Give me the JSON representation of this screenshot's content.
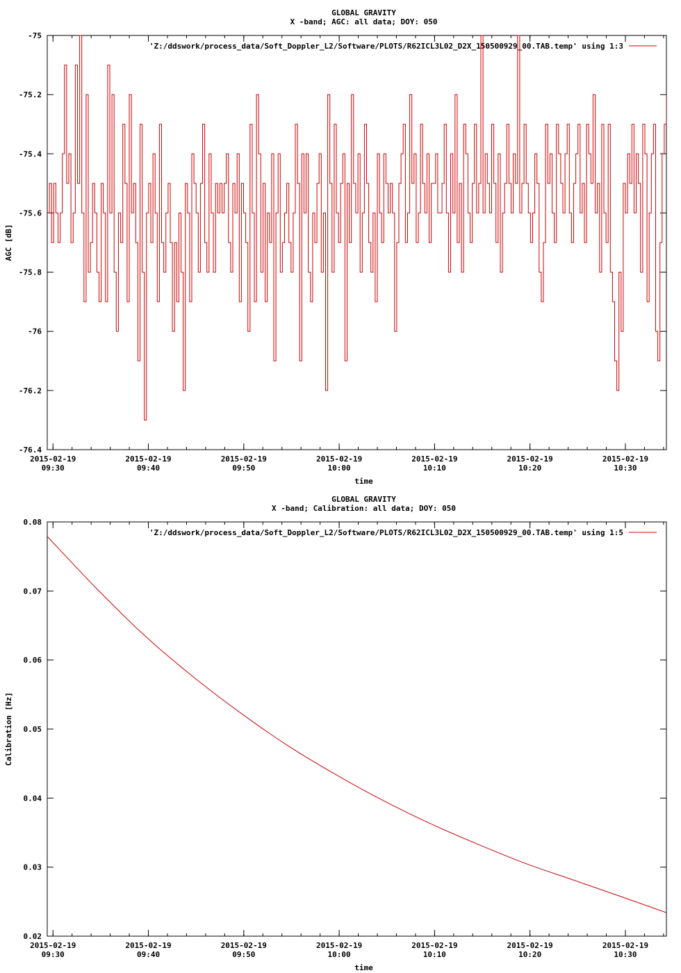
{
  "colors": {
    "series": "#cc0000",
    "axis": "#000000",
    "background": "#ffffff"
  },
  "chart_data": [
    {
      "type": "line",
      "title": "GLOBAL GRAVITY",
      "subtitle": "X -band; AGC: all data; DOY: 050",
      "xlabel": "time",
      "ylabel": "AGC [dB]",
      "legend": "'Z:/ddswork/process_data/Soft_Doppler_L2/Software/PLOTS/R62ICL3L02_D2X_150500929_00.TAB.temp' using 1:3",
      "legend_placement": "top-right",
      "grid": false,
      "x_unit": "minutes after 2015-02-19 09:30",
      "xlim": [
        -0.6,
        64.3
      ],
      "ylim": [
        -76.4,
        -75.0
      ],
      "xticks": [
        {
          "value": 0,
          "date": "2015-02-19",
          "time": "09:30"
        },
        {
          "value": 10,
          "date": "2015-02-19",
          "time": "09:40"
        },
        {
          "value": 20,
          "date": "2015-02-19",
          "time": "09:50"
        },
        {
          "value": 30,
          "date": "2015-02-19",
          "time": "10:00"
        },
        {
          "value": 40,
          "date": "2015-02-19",
          "time": "10:10"
        },
        {
          "value": 50,
          "date": "2015-02-19",
          "time": "10:20"
        },
        {
          "value": 60,
          "date": "2015-02-19",
          "time": "10:30"
        }
      ],
      "x_minor_tick_step": 2,
      "yticks": [
        {
          "value": -75.0,
          "label": "-75"
        },
        {
          "value": -75.2,
          "label": "-75.2"
        },
        {
          "value": -75.4,
          "label": "-75.4"
        },
        {
          "value": -75.6,
          "label": "-75.6"
        },
        {
          "value": -75.8,
          "label": "-75.8"
        },
        {
          "value": -76.0,
          "label": "-76"
        },
        {
          "value": -76.2,
          "label": "-76.2"
        },
        {
          "value": -76.4,
          "label": "-76.4"
        }
      ],
      "series": [
        {
          "x": [
            -0.6,
            64.3
          ],
          "samples": [
            -75.6,
            -75.5,
            -75.7,
            -75.5,
            -75.6,
            -75.7,
            -75.6,
            -75.4,
            -75.1,
            -75.5,
            -75.4,
            -75.7,
            -75.6,
            -75.1,
            -75.5,
            -75.0,
            -75.6,
            -75.9,
            -75.2,
            -75.8,
            -75.7,
            -75.5,
            -75.6,
            -75.8,
            -75.9,
            -75.5,
            -75.6,
            -75.9,
            -75.1,
            -75.6,
            -75.2,
            -75.8,
            -76.0,
            -75.6,
            -75.7,
            -75.3,
            -75.5,
            -75.9,
            -75.2,
            -75.6,
            -75.5,
            -75.7,
            -76.1,
            -75.3,
            -75.8,
            -76.3,
            -75.6,
            -75.5,
            -75.7,
            -75.4,
            -75.6,
            -75.9,
            -75.3,
            -75.7,
            -75.8,
            -75.6,
            -75.5,
            -75.7,
            -76.0,
            -75.7,
            -75.9,
            -75.6,
            -75.8,
            -76.2,
            -75.5,
            -75.6,
            -75.9,
            -75.4,
            -75.5,
            -75.6,
            -75.8,
            -75.5,
            -75.3,
            -75.7,
            -75.8,
            -75.4,
            -75.6,
            -75.8,
            -75.5,
            -75.6,
            -75.5,
            -75.6,
            -75.5,
            -75.4,
            -75.7,
            -75.8,
            -75.5,
            -75.6,
            -75.4,
            -75.9,
            -75.5,
            -75.6,
            -75.7,
            -76.0,
            -75.3,
            -75.6,
            -75.9,
            -75.2,
            -75.4,
            -75.8,
            -75.5,
            -75.9,
            -75.6,
            -75.7,
            -75.4,
            -76.1,
            -75.6,
            -75.4,
            -75.8,
            -75.7,
            -75.6,
            -75.5,
            -75.7,
            -75.8,
            -75.6,
            -75.3,
            -75.5,
            -76.1,
            -75.4,
            -75.6,
            -75.4,
            -75.8,
            -75.9,
            -75.6,
            -75.7,
            -75.5,
            -75.4,
            -75.8,
            -75.6,
            -76.2,
            -75.2,
            -75.5,
            -75.8,
            -75.3,
            -75.6,
            -75.7,
            -75.5,
            -75.4,
            -76.1,
            -75.5,
            -75.7,
            -75.2,
            -75.5,
            -75.6,
            -75.4,
            -75.8,
            -75.6,
            -75.3,
            -75.5,
            -75.7,
            -75.8,
            -75.6,
            -75.9,
            -75.4,
            -75.6,
            -75.7,
            -75.4,
            -75.5,
            -75.6,
            -75.5,
            -75.6,
            -76.0,
            -75.7,
            -75.5,
            -75.4,
            -75.3,
            -75.7,
            -75.6,
            -75.2,
            -75.5,
            -75.4,
            -75.7,
            -75.6,
            -75.3,
            -75.5,
            -75.6,
            -75.4,
            -75.7,
            -75.5,
            -75.5,
            -75.4,
            -75.6,
            -75.6,
            -75.5,
            -75.3,
            -75.6,
            -75.8,
            -75.4,
            -75.6,
            -75.2,
            -75.7,
            -75.5,
            -75.8,
            -75.3,
            -75.4,
            -75.6,
            -75.7,
            -75.5,
            -75.3,
            -75.6,
            -75.5,
            -75.0,
            -75.6,
            -75.4,
            -75.5,
            -75.6,
            -75.3,
            -75.5,
            -75.7,
            -75.4,
            -75.8,
            -75.6,
            -75.5,
            -75.3,
            -75.5,
            -75.6,
            -75.4,
            -75.5,
            -75.0,
            -75.6,
            -75.5,
            -75.3,
            -75.5,
            -75.6,
            -75.7,
            -75.6,
            -75.4,
            -75.5,
            -75.8,
            -75.9,
            -75.7,
            -75.3,
            -75.5,
            -75.4,
            -75.6,
            -75.7,
            -75.3,
            -75.4,
            -75.5,
            -75.6,
            -75.4,
            -75.3,
            -75.6,
            -75.7,
            -75.5,
            -75.4,
            -75.3,
            -75.6,
            -75.5,
            -75.7,
            -75.3,
            -75.4,
            -75.5,
            -75.2,
            -75.6,
            -75.5,
            -75.8,
            -75.3,
            -75.6,
            -75.7,
            -75.3,
            -75.8,
            -75.9,
            -76.1,
            -76.2,
            -75.8,
            -76.0,
            -75.5,
            -75.6,
            -75.4,
            -75.5,
            -75.3,
            -75.6,
            -75.4,
            -75.5,
            -75.8,
            -75.3,
            -75.4,
            -75.9,
            -75.6,
            -75.4,
            -75.3,
            -76.0,
            -76.1,
            -75.7,
            -75.4,
            -75.3,
            -75.2
          ]
        }
      ]
    },
    {
      "type": "line",
      "title": "GLOBAL GRAVITY",
      "subtitle": "X -band; Calibration: all data; DOY: 050",
      "xlabel": "time",
      "ylabel": "Calibration [Hz]",
      "legend": "'Z:/ddswork/process_data/Soft_Doppler_L2/Software/PLOTS/R62ICL3L02_D2X_150500929_00.TAB.temp' using 1:5",
      "legend_placement": "top-right",
      "grid": false,
      "x_unit": "minutes after 2015-02-19 09:30",
      "xlim": [
        -0.6,
        64.3
      ],
      "ylim": [
        0.02,
        0.08
      ],
      "xticks": [
        {
          "value": 0,
          "date": "2015-02-19",
          "time": "09:30"
        },
        {
          "value": 10,
          "date": "2015-02-19",
          "time": "09:40"
        },
        {
          "value": 20,
          "date": "2015-02-19",
          "time": "09:50"
        },
        {
          "value": 30,
          "date": "2015-02-19",
          "time": "10:00"
        },
        {
          "value": 40,
          "date": "2015-02-19",
          "time": "10:10"
        },
        {
          "value": 50,
          "date": "2015-02-19",
          "time": "10:20"
        },
        {
          "value": 60,
          "date": "2015-02-19",
          "time": "10:30"
        }
      ],
      "x_minor_tick_step": 2,
      "yticks": [
        {
          "value": 0.02,
          "label": "0.02"
        },
        {
          "value": 0.03,
          "label": "0.03"
        },
        {
          "value": 0.04,
          "label": "0.04"
        },
        {
          "value": 0.05,
          "label": "0.05"
        },
        {
          "value": 0.06,
          "label": "0.06"
        },
        {
          "value": 0.07,
          "label": "0.07"
        },
        {
          "value": 0.08,
          "label": "0.08"
        }
      ],
      "series": [
        {
          "x": [
            -0.6,
            4.4,
            9.4,
            14.4,
            19.4,
            24.4,
            29.4,
            34.4,
            39.4,
            44.4,
            49.4,
            54.4,
            59.4,
            64.3
          ],
          "y": [
            0.0779,
            0.0706,
            0.0638,
            0.0579,
            0.0526,
            0.0478,
            0.0436,
            0.0398,
            0.0364,
            0.0334,
            0.0306,
            0.0282,
            0.0258,
            0.0234
          ]
        }
      ]
    }
  ]
}
